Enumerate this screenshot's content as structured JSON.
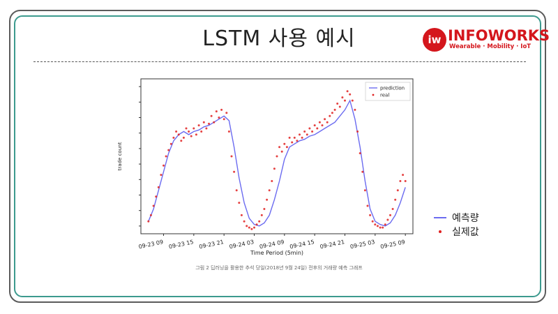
{
  "slide": {
    "title": "LSTM 사용 예시"
  },
  "logo": {
    "mark": "iw",
    "name": "INFOWORKS",
    "tagline": "Wearable · Mobility · IoT"
  },
  "caption": "그림 2 딥러닝을 활용한 추석 당일(2018년 9월 24일) 전후의 거래량 예측 그래프",
  "side_legend": {
    "line_label": "예측량",
    "dot_label": "실제값"
  },
  "chart_data": {
    "type": "line",
    "xlabel": "Time Period (5min)",
    "ylabel": "trade count",
    "x_tick_labels": [
      "09-23 09",
      "09-23 15",
      "09-23 21",
      "09-24 03",
      "09-24 09",
      "09-24 15",
      "09-24 21",
      "09-25 03",
      "09-25 09"
    ],
    "x_ticks_hours": [
      9,
      15,
      21,
      27,
      33,
      39,
      45,
      51,
      57
    ],
    "xlim_hours": [
      4.5,
      58.5
    ],
    "ylim": [
      0,
      100
    ],
    "y_tick_values": [
      5,
      15,
      25,
      35,
      45,
      55,
      65,
      75,
      85,
      95
    ],
    "y_tick_labels_visible": false,
    "legend": {
      "position": "top-right",
      "entries": [
        "prediction",
        "real"
      ]
    },
    "colors": {
      "prediction": "#6b6bf0",
      "real": "#e02020"
    },
    "series": [
      {
        "name": "prediction",
        "style": "line",
        "x_hours": [
          6,
          7,
          8,
          9,
          10,
          11,
          12,
          13,
          14,
          15,
          16,
          17,
          18,
          19,
          20,
          21,
          22,
          23,
          24,
          25,
          26,
          27,
          28,
          29,
          30,
          31,
          32,
          33,
          34,
          35,
          36,
          37,
          38,
          39,
          40,
          41,
          42,
          43,
          44,
          45,
          46,
          47,
          48,
          49,
          50,
          51,
          52,
          53,
          54,
          55,
          56,
          57
        ],
        "values": [
          8,
          16,
          28,
          40,
          52,
          60,
          64,
          66,
          64,
          66,
          67,
          69,
          70,
          72,
          74,
          76,
          73,
          56,
          36,
          20,
          10,
          6,
          5,
          7,
          12,
          22,
          34,
          48,
          56,
          58,
          60,
          61,
          63,
          64,
          66,
          68,
          70,
          72,
          76,
          80,
          86,
          74,
          56,
          34,
          16,
          8,
          6,
          5,
          7,
          12,
          20,
          30
        ]
      },
      {
        "name": "real",
        "style": "markers",
        "x_hours": [
          6,
          6.5,
          7,
          7.5,
          8,
          8.5,
          9,
          9.5,
          10,
          10.5,
          11,
          11.5,
          12,
          12.5,
          13,
          13.5,
          14,
          14.5,
          15,
          15.5,
          16,
          16.5,
          17,
          17.5,
          18,
          18.5,
          19,
          19.5,
          20,
          20.5,
          21,
          21.5,
          22,
          22.5,
          23,
          23.5,
          24,
          24.5,
          25,
          25.5,
          26,
          26.5,
          27,
          27.5,
          28,
          28.5,
          29,
          29.5,
          30,
          30.5,
          31,
          31.5,
          32,
          32.5,
          33,
          33.5,
          34,
          34.5,
          35,
          35.5,
          36,
          36.5,
          37,
          37.5,
          38,
          38.5,
          39,
          39.5,
          40,
          40.5,
          41,
          41.5,
          42,
          42.5,
          43,
          43.5,
          44,
          44.5,
          45,
          45.5,
          46,
          46.5,
          47,
          47.5,
          48,
          48.5,
          49,
          49.5,
          50,
          50.5,
          51,
          51.5,
          52,
          52.5,
          53,
          53.5,
          54,
          54.5,
          55,
          55.5,
          56,
          56.5,
          57
        ],
        "values": [
          8,
          12,
          18,
          24,
          30,
          38,
          44,
          50,
          54,
          58,
          62,
          66,
          64,
          60,
          62,
          68,
          66,
          63,
          68,
          64,
          70,
          66,
          72,
          68,
          71,
          76,
          72,
          79,
          75,
          80,
          74,
          78,
          66,
          50,
          40,
          28,
          20,
          12,
          8,
          5,
          4,
          3,
          4,
          6,
          8,
          12,
          16,
          22,
          28,
          34,
          42,
          50,
          56,
          53,
          58,
          56,
          62,
          59,
          62,
          60,
          64,
          62,
          66,
          64,
          68,
          66,
          70,
          68,
          72,
          70,
          74,
          72,
          76,
          78,
          80,
          84,
          82,
          88,
          86,
          92,
          90,
          86,
          80,
          66,
          52,
          40,
          28,
          18,
          12,
          8,
          6,
          5,
          4,
          4,
          6,
          9,
          12,
          16,
          22,
          28,
          34,
          38,
          34
        ]
      }
    ]
  }
}
